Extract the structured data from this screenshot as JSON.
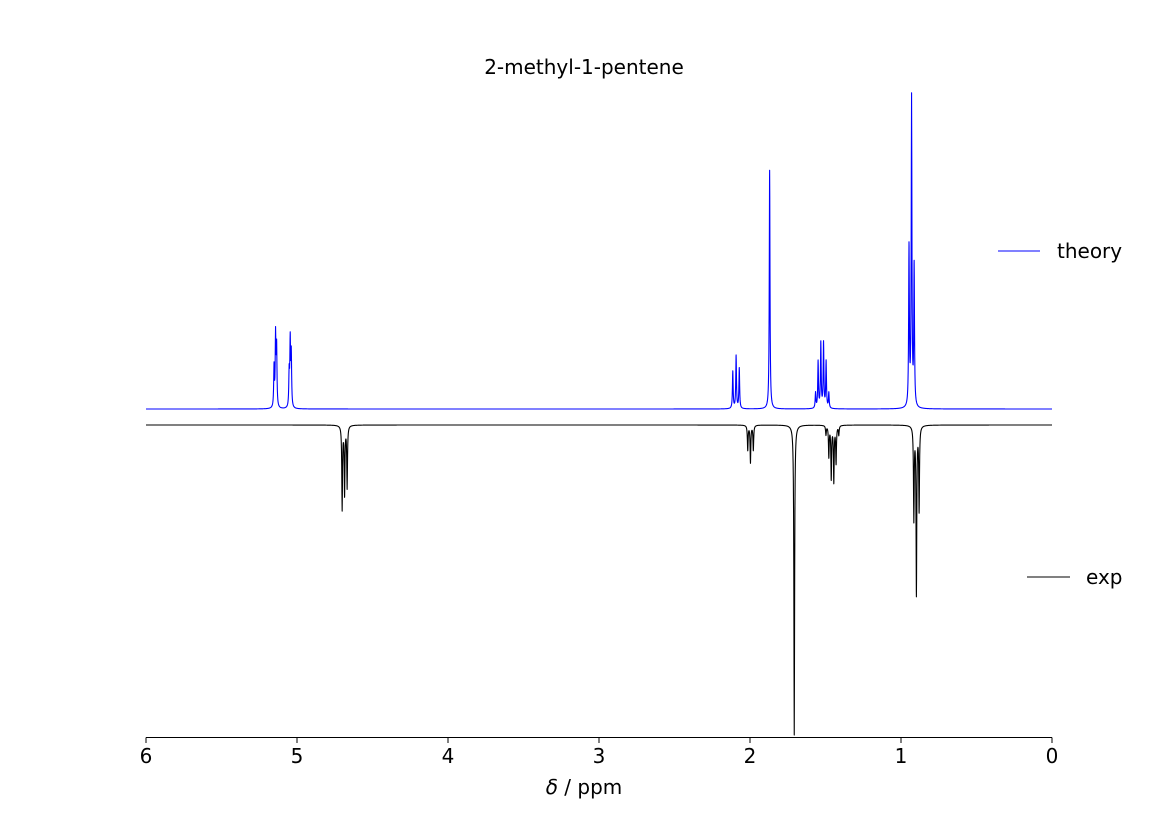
{
  "chart_data": {
    "type": "line",
    "title": "2-methyl-1-pentene",
    "xlabel_italic": "δ",
    "xlabel_rest": " / ppm",
    "xlim": [
      6,
      0
    ],
    "xticks": [
      "6",
      "5",
      "4",
      "3",
      "2",
      "1",
      "0"
    ],
    "xtick_values": [
      6,
      5,
      4,
      3,
      2,
      1,
      0
    ],
    "grid": false,
    "legend_placement": "right",
    "series": [
      {
        "name": "theory",
        "color": "#0000ff",
        "direction": "up",
        "peaks": [
          {
            "ppm": 5.152,
            "h": 0.13
          },
          {
            "ppm": 5.142,
            "h": 0.23
          },
          {
            "ppm": 5.135,
            "h": 0.19
          },
          {
            "ppm": 5.052,
            "h": 0.11
          },
          {
            "ppm": 5.045,
            "h": 0.21
          },
          {
            "ppm": 5.038,
            "h": 0.17
          },
          {
            "ppm": 2.114,
            "h": 0.12
          },
          {
            "ppm": 2.092,
            "h": 0.17
          },
          {
            "ppm": 2.071,
            "h": 0.13
          },
          {
            "ppm": 1.87,
            "h": 0.77
          },
          {
            "ppm": 1.566,
            "h": 0.05
          },
          {
            "ppm": 1.549,
            "h": 0.15
          },
          {
            "ppm": 1.531,
            "h": 0.21
          },
          {
            "ppm": 1.513,
            "h": 0.21
          },
          {
            "ppm": 1.496,
            "h": 0.15
          },
          {
            "ppm": 1.478,
            "h": 0.05
          },
          {
            "ppm": 0.947,
            "h": 0.51
          },
          {
            "ppm": 0.93,
            "h": 1.0
          },
          {
            "ppm": 0.913,
            "h": 0.45
          }
        ]
      },
      {
        "name": "exp",
        "color": "#000000",
        "direction": "down",
        "peaks": [
          {
            "ppm": 4.701,
            "h": 0.27
          },
          {
            "ppm": 4.685,
            "h": 0.22
          },
          {
            "ppm": 4.668,
            "h": 0.2
          },
          {
            "ppm": 2.015,
            "h": 0.08
          },
          {
            "ppm": 1.997,
            "h": 0.12
          },
          {
            "ppm": 1.978,
            "h": 0.08
          },
          {
            "ppm": 1.707,
            "h": 1.0
          },
          {
            "ppm": 1.497,
            "h": 0.03
          },
          {
            "ppm": 1.478,
            "h": 0.1
          },
          {
            "ppm": 1.462,
            "h": 0.17
          },
          {
            "ppm": 1.445,
            "h": 0.18
          },
          {
            "ppm": 1.43,
            "h": 0.12
          },
          {
            "ppm": 1.412,
            "h": 0.03
          },
          {
            "ppm": 0.915,
            "h": 0.3
          },
          {
            "ppm": 0.898,
            "h": 0.54
          },
          {
            "ppm": 0.88,
            "h": 0.27
          }
        ]
      }
    ]
  }
}
